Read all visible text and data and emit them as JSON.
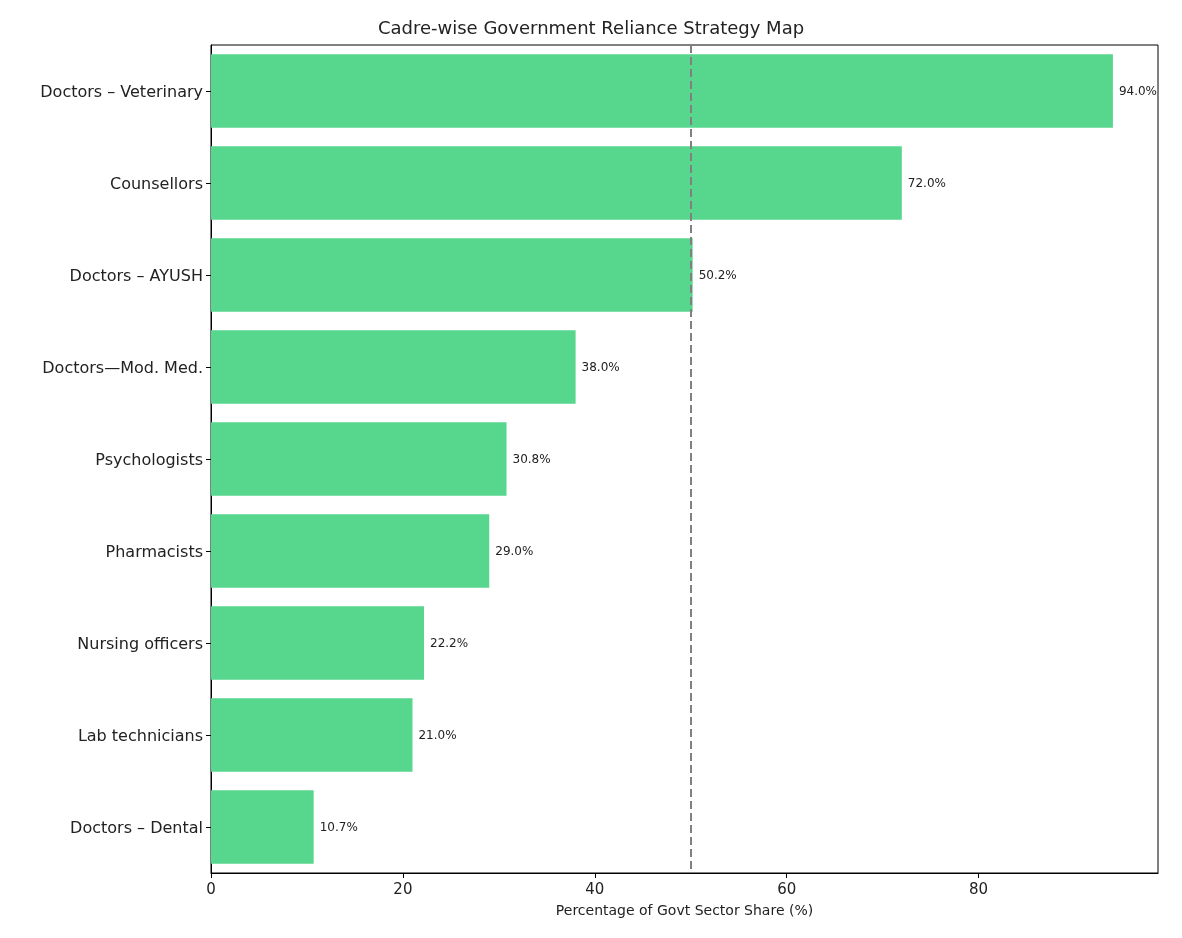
{
  "chart_data": {
    "type": "bar",
    "orientation": "horizontal",
    "title": "Cadre-wise Government Reliance Strategy Map",
    "xlabel": "Percentage of Govt Sector Share (%)",
    "categories": [
      "Doctors – Veterinary",
      "Counsellors",
      "Doctors – AYUSH",
      "Doctors—Mod. Med.",
      "Psychologists",
      "Pharmacists",
      "Nursing officers",
      "Lab technicians",
      "Doctors – Dental"
    ],
    "values": [
      94.0,
      72.0,
      50.2,
      38.0,
      30.8,
      29.0,
      22.2,
      21.0,
      10.7
    ],
    "value_labels": [
      "94.0%",
      "72.0%",
      "50.2%",
      "38.0%",
      "30.8%",
      "29.0%",
      "22.2%",
      "21.0%",
      "10.7%"
    ],
    "color": "#57d68d",
    "xlim": [
      0,
      98.7
    ],
    "xticks": [
      0,
      20,
      40,
      60,
      80
    ],
    "ref_lines": [
      {
        "axis": "x",
        "value": 50,
        "color": "#808080",
        "line_style": "dashed"
      }
    ],
    "grid": false
  }
}
